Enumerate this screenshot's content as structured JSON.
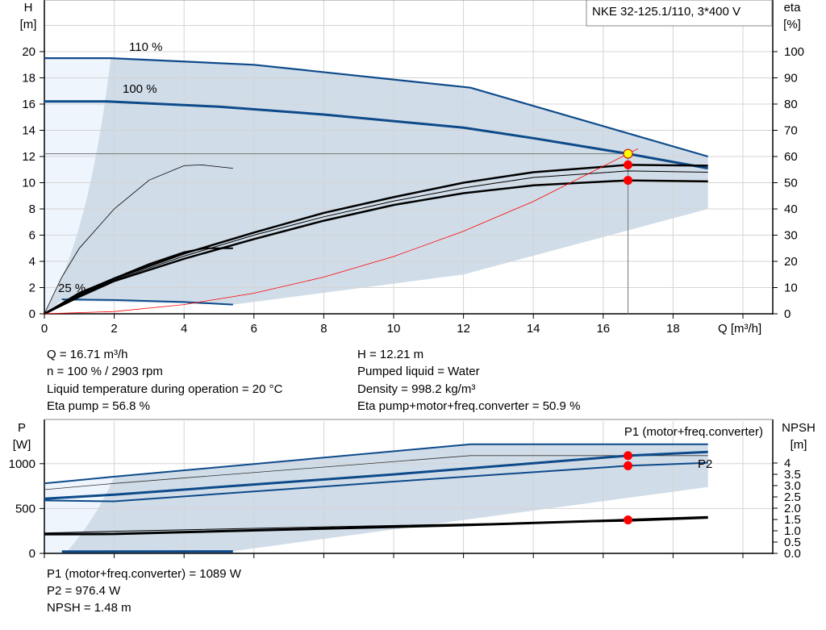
{
  "chart_data": [
    {
      "type": "line",
      "title": "NKE 32-125.1/110, 3*400 V",
      "xlabel": "Q [m³/h]",
      "ylabel": "H [m]",
      "y2label": "eta [%]",
      "xlim": [
        0,
        20
      ],
      "ylim": [
        0,
        22
      ],
      "y2lim": [
        0,
        110
      ],
      "x_ticks": [
        "0",
        "2",
        "4",
        "6",
        "8",
        "10",
        "12",
        "14",
        "16",
        "18"
      ],
      "y_ticks": [
        "0",
        "2",
        "4",
        "6",
        "8",
        "10",
        "12",
        "14",
        "16",
        "18",
        "20"
      ],
      "y2_ticks": [
        "0",
        "10",
        "20",
        "30",
        "40",
        "50",
        "60",
        "70",
        "80",
        "90",
        "100"
      ],
      "grid": true,
      "curve_labels": [
        "110 %",
        "100 %",
        "25 %"
      ],
      "series": [
        {
          "name": "110 %",
          "axis": "H",
          "points": [
            [
              0,
              19.5
            ],
            [
              1.9,
              19.5
            ],
            [
              6,
              19.0
            ],
            [
              12.2,
              17.25
            ],
            [
              19,
              12.0
            ]
          ]
        },
        {
          "name": "100 %",
          "axis": "H",
          "points": [
            [
              0,
              16.2
            ],
            [
              1.8,
              16.2
            ],
            [
              5,
              15.8
            ],
            [
              8,
              15.2
            ],
            [
              12,
              14.2
            ],
            [
              14,
              13.4
            ],
            [
              16.71,
              12.21
            ],
            [
              19,
              11.1
            ]
          ]
        },
        {
          "name": "25 %",
          "axis": "H",
          "points": [
            [
              0.5,
              1.1
            ],
            [
              2,
              1.05
            ],
            [
              4,
              0.9
            ],
            [
              5.4,
              0.7
            ]
          ]
        },
        {
          "axis": "eta",
          "points": [
            [
              0,
              0
            ],
            [
              1,
              7.5
            ],
            [
              2,
              13.5
            ],
            [
              4,
              23
            ],
            [
              6,
              31
            ],
            [
              8,
              38.5
            ],
            [
              10,
              44.5
            ],
            [
              12,
              50
            ],
            [
              14,
              54
            ],
            [
              16.71,
              56.8
            ],
            [
              19,
              56.5
            ]
          ]
        },
        {
          "axis": "eta",
          "points": [
            [
              0,
              0
            ],
            [
              1,
              6.5
            ],
            [
              2,
              12.5
            ],
            [
              4,
              21
            ],
            [
              6,
              28.5
            ],
            [
              8,
              35.5
            ],
            [
              10,
              41.5
            ],
            [
              12,
              46
            ],
            [
              14,
              49
            ],
            [
              16.71,
              50.9
            ],
            [
              19,
              50.5
            ]
          ]
        },
        {
          "axis": "eta",
          "points": [
            [
              0,
              0
            ],
            [
              1,
              7
            ],
            [
              2,
              13
            ],
            [
              4,
              22
            ],
            [
              6,
              30
            ],
            [
              8,
              37
            ],
            [
              10,
              43
            ],
            [
              12,
              48
            ],
            [
              14,
              52
            ],
            [
              16.71,
              54.5
            ],
            [
              19,
              54
            ]
          ]
        },
        {
          "axis": "eta",
          "points": [
            [
              0,
              0
            ],
            [
              0.5,
              4
            ],
            [
              1,
              8
            ],
            [
              2,
              13.5
            ],
            [
              3,
              19
            ],
            [
              4,
              23.5
            ],
            [
              4.6,
              25
            ],
            [
              5.4,
              25
            ]
          ]
        },
        {
          "axis": "eta",
          "points": [
            [
              0,
              0
            ],
            [
              0.5,
              14
            ],
            [
              1,
              25
            ],
            [
              2,
              40
            ],
            [
              3,
              51
            ],
            [
              4,
              56.5
            ],
            [
              4.5,
              56.8
            ],
            [
              5.4,
              55.5
            ]
          ]
        },
        {
          "name": "system curve",
          "axis": "H",
          "points": [
            [
              0,
              0
            ],
            [
              2,
              0.17
            ],
            [
              4,
              0.7
            ],
            [
              6,
              1.57
            ],
            [
              8,
              2.8
            ],
            [
              10,
              4.37
            ],
            [
              12,
              6.3
            ],
            [
              14,
              8.57
            ],
            [
              16.71,
              12.21
            ],
            [
              17,
              12.6
            ]
          ]
        }
      ],
      "duty_points": [
        {
          "label": "operating point",
          "q": 16.71,
          "h": 12.21,
          "color": "#ffff00"
        },
        {
          "label": "eta pump",
          "q": 16.71,
          "eta": 56.8,
          "color": "#ff0000"
        },
        {
          "label": "eta total",
          "q": 16.71,
          "eta": 50.9,
          "color": "#ff0000"
        }
      ]
    },
    {
      "type": "line",
      "xlabel": "Q [m³/h]",
      "ylabel": "P [W]",
      "y2label": "NPSH [m]",
      "xlim": [
        0,
        20
      ],
      "ylim": [
        0,
        1230
      ],
      "y_ticks": [
        "0",
        "500",
        "1000"
      ],
      "y2_ticks": [
        "0.0",
        "0.5",
        "1.0",
        "1.5",
        "2.0",
        "2.5",
        "3.0",
        "3.5",
        "4"
      ],
      "legend_labels": [
        "P1 (motor+freq.converter)",
        "P2"
      ],
      "series": [
        {
          "name": "P1 110 %",
          "axis": "P",
          "points": [
            [
              0,
              780
            ],
            [
              2,
              855
            ],
            [
              12.2,
              1216
            ],
            [
              19,
              1216
            ]
          ]
        },
        {
          "name": "P2 110 %",
          "axis": "P",
          "points": [
            [
              0,
              710
            ],
            [
              2,
              780
            ],
            [
              12.2,
              1090
            ],
            [
              19,
              1090
            ]
          ]
        },
        {
          "name": "P1 (motor+freq.converter)",
          "axis": "P",
          "points": [
            [
              0,
              610
            ],
            [
              2,
              655
            ],
            [
              10,
              880
            ],
            [
              16.71,
              1089
            ],
            [
              19,
              1130
            ]
          ]
        },
        {
          "name": "P2",
          "axis": "P",
          "points": [
            [
              0,
              590
            ],
            [
              2,
              580
            ],
            [
              10,
              800
            ],
            [
              16.71,
              976.4
            ],
            [
              19,
              1010
            ]
          ]
        },
        {
          "name": "P1 25 %",
          "axis": "P",
          "points": [
            [
              0.5,
              20
            ],
            [
              5.4,
              22
            ]
          ]
        },
        {
          "name": "NPSH",
          "axis": "NPSH",
          "points": [
            [
              0,
              0.85
            ],
            [
              2,
              0.86
            ],
            [
              8,
              1.1
            ],
            [
              12,
              1.25
            ],
            [
              16.71,
              1.48
            ],
            [
              19,
              1.6
            ]
          ]
        },
        {
          "axis": "NPSH",
          "points": [
            [
              0,
              0.9
            ],
            [
              2,
              0.98
            ],
            [
              12,
              1.3
            ],
            [
              16.71,
              1.42
            ],
            [
              19,
              1.55
            ]
          ]
        }
      ],
      "duty_points": [
        {
          "q": 16.71,
          "p": 1089,
          "color": "#ff0000"
        },
        {
          "q": 16.71,
          "p": 976.4,
          "color": "#ff0000"
        },
        {
          "q": 16.71,
          "npsh": 1.48,
          "color": "#ff0000"
        }
      ]
    }
  ],
  "info_top": {
    "q": "Q = 16.71 m³/h",
    "n": "n = 100 % / 2903 rpm",
    "temp": "Liquid temperature during operation = 20 °C",
    "eta_pump": "Eta pump = 56.8 %",
    "h": "H = 12.21 m",
    "liquid": "Pumped liquid = Water",
    "density": "Density = 998.2 kg/m³",
    "eta_total": "Eta pump+motor+freq.converter = 50.9 %"
  },
  "info_bottom": {
    "p1": "P1 (motor+freq.converter) = 1089 W",
    "p2": "P2 = 976.4 W",
    "npsh": "NPSH = 1.48 m"
  },
  "colors": {
    "curve": "#0d4a8a",
    "area": "#d0dce8",
    "area_light": "#eef5fc",
    "point": "#ff0000",
    "op_point": "#ffff00"
  }
}
